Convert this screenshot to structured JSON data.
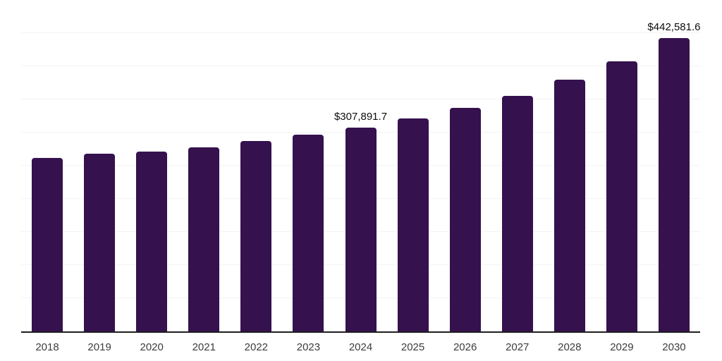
{
  "chart_data": {
    "type": "bar",
    "title": "",
    "xlabel": "",
    "ylabel": "",
    "categories": [
      "2018",
      "2019",
      "2020",
      "2021",
      "2022",
      "2023",
      "2024",
      "2025",
      "2026",
      "2027",
      "2028",
      "2029",
      "2030"
    ],
    "values": [
      262000,
      267800,
      271300,
      277700,
      287200,
      296300,
      307891.7,
      321000,
      336900,
      355700,
      379500,
      407100,
      442581.6
    ],
    "data_labels": {
      "2024": "$307,891.7",
      "2030": "$442,581.6"
    },
    "ylim": [
      0,
      500000
    ],
    "grid_step": 50000,
    "grid": true,
    "legend": false,
    "y_axis_labels_visible": false,
    "colors": {
      "bar": "#35114E",
      "axis_line": "#1f1f1f",
      "gridline": "#f3f3f3",
      "tick_label": "#3c3c3c",
      "data_label": "#0d0d0d",
      "background": "#ffffff"
    }
  }
}
